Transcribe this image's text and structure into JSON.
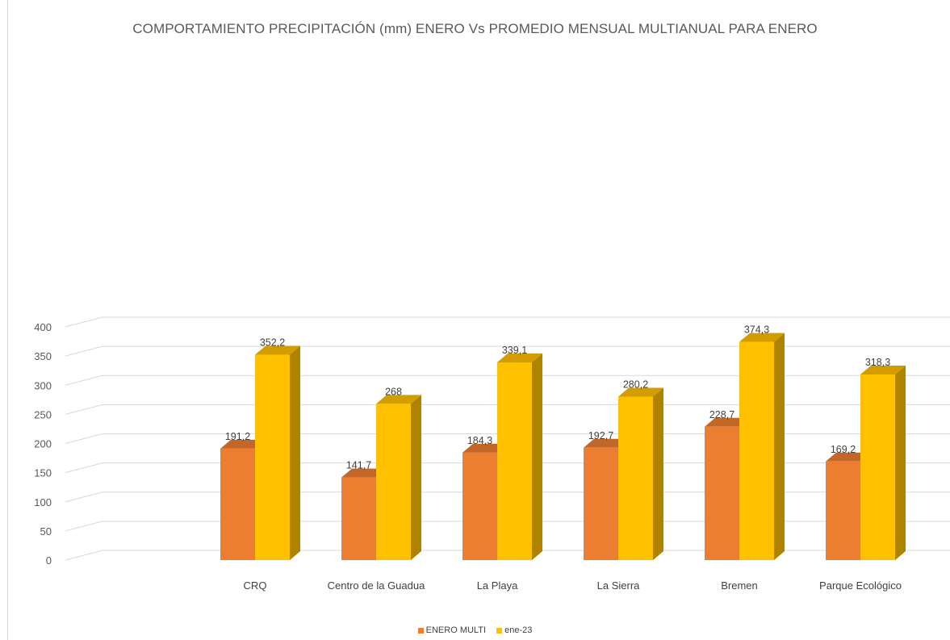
{
  "chart_data": {
    "type": "bar",
    "title": "COMPORTAMIENTO PRECIPITACIÓN (mm) ENERO Vs PROMEDIO MENSUAL MULTIANUAL PARA  ENERO",
    "xlabel": "",
    "ylabel": "",
    "ylim": [
      0,
      400
    ],
    "y_ticks": [
      0,
      50,
      100,
      150,
      200,
      250,
      300,
      350,
      400
    ],
    "grid": true,
    "legend_position": "bottom",
    "categories": [
      "CRQ",
      "Centro de la Guadua",
      "La Playa",
      "La Sierra",
      "Bremen",
      "Parque Ecológico"
    ],
    "series": [
      {
        "name": "ENERO MULTI",
        "color": "#ED7D31",
        "values": [
          191.2,
          141.7,
          184.3,
          192.7,
          228.7,
          169.2
        ],
        "labels": [
          "191,2",
          "141,7",
          "184,3",
          "192,7",
          "228,7",
          "169,2"
        ]
      },
      {
        "name": "ene-23",
        "color": "#FFC000",
        "values": [
          352.2,
          268,
          339.1,
          280.2,
          374.3,
          318.3
        ],
        "labels": [
          "352,2",
          "268",
          "339,1",
          "280,2",
          "374,3",
          "318,3"
        ]
      }
    ]
  }
}
